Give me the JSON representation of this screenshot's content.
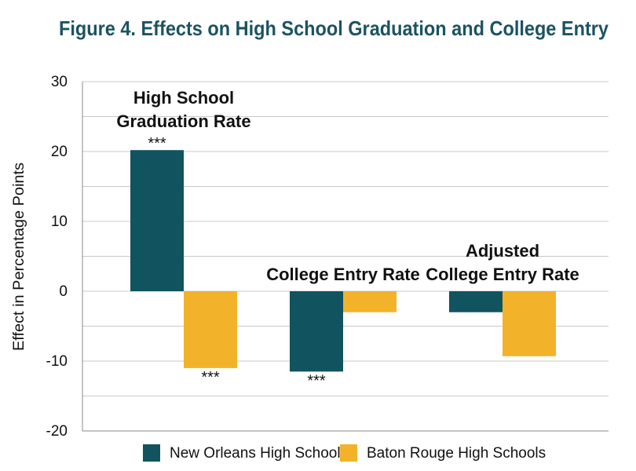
{
  "chart_data": {
    "type": "bar",
    "title": "Figure 4. Effects on High School Graduation and College Entry",
    "xlabel": "",
    "ylabel": "Effect in Percentage Points",
    "ylim": [
      -20,
      30
    ],
    "yticks": [
      30,
      20,
      10,
      0,
      -10,
      -20
    ],
    "y_tick_labels": [
      "30",
      "20",
      "10",
      "0",
      "-10",
      "-20"
    ],
    "gridlines": true,
    "legend_position": "bottom",
    "categories": [
      [
        "High School",
        "Graduation Rate"
      ],
      [
        "College Entry Rate"
      ],
      [
        "Adjusted",
        "College Entry Rate"
      ]
    ],
    "series": [
      {
        "name": "New Orleans High Schools",
        "color": "#11535f",
        "values": [
          20.2,
          -11.5,
          -3.0
        ],
        "significance": [
          "***",
          "***",
          ""
        ]
      },
      {
        "name": "Baton Rouge High Schools",
        "color": "#f2b22a",
        "values": [
          -11.0,
          -3.0,
          -9.3
        ],
        "significance": [
          "***",
          "",
          ""
        ]
      }
    ]
  }
}
